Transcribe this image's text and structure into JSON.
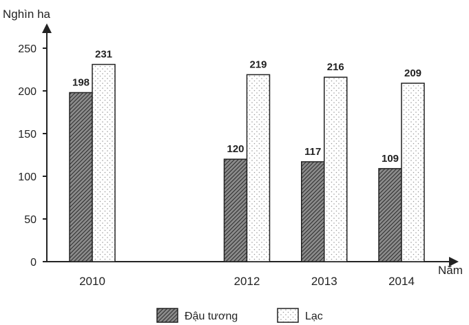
{
  "chart_data": {
    "type": "bar",
    "ylabel": "Nghìn ha",
    "xlabel": "Năm",
    "x": [
      2010,
      2012,
      2013,
      2014
    ],
    "categories": [
      "2010",
      "2012",
      "2013",
      "2014"
    ],
    "ylim": [
      0,
      250
    ],
    "yticks": [
      0,
      50,
      100,
      150,
      200,
      250
    ],
    "grid": false,
    "legend": "bottom-center",
    "series": [
      {
        "name": "Đậu tương",
        "values": [
          198,
          120,
          117,
          109
        ],
        "pattern": "hatched",
        "color": "#555555"
      },
      {
        "name": "Lạc",
        "values": [
          231,
          219,
          216,
          209
        ],
        "pattern": "dotted",
        "color": "#ffffff"
      }
    ]
  }
}
